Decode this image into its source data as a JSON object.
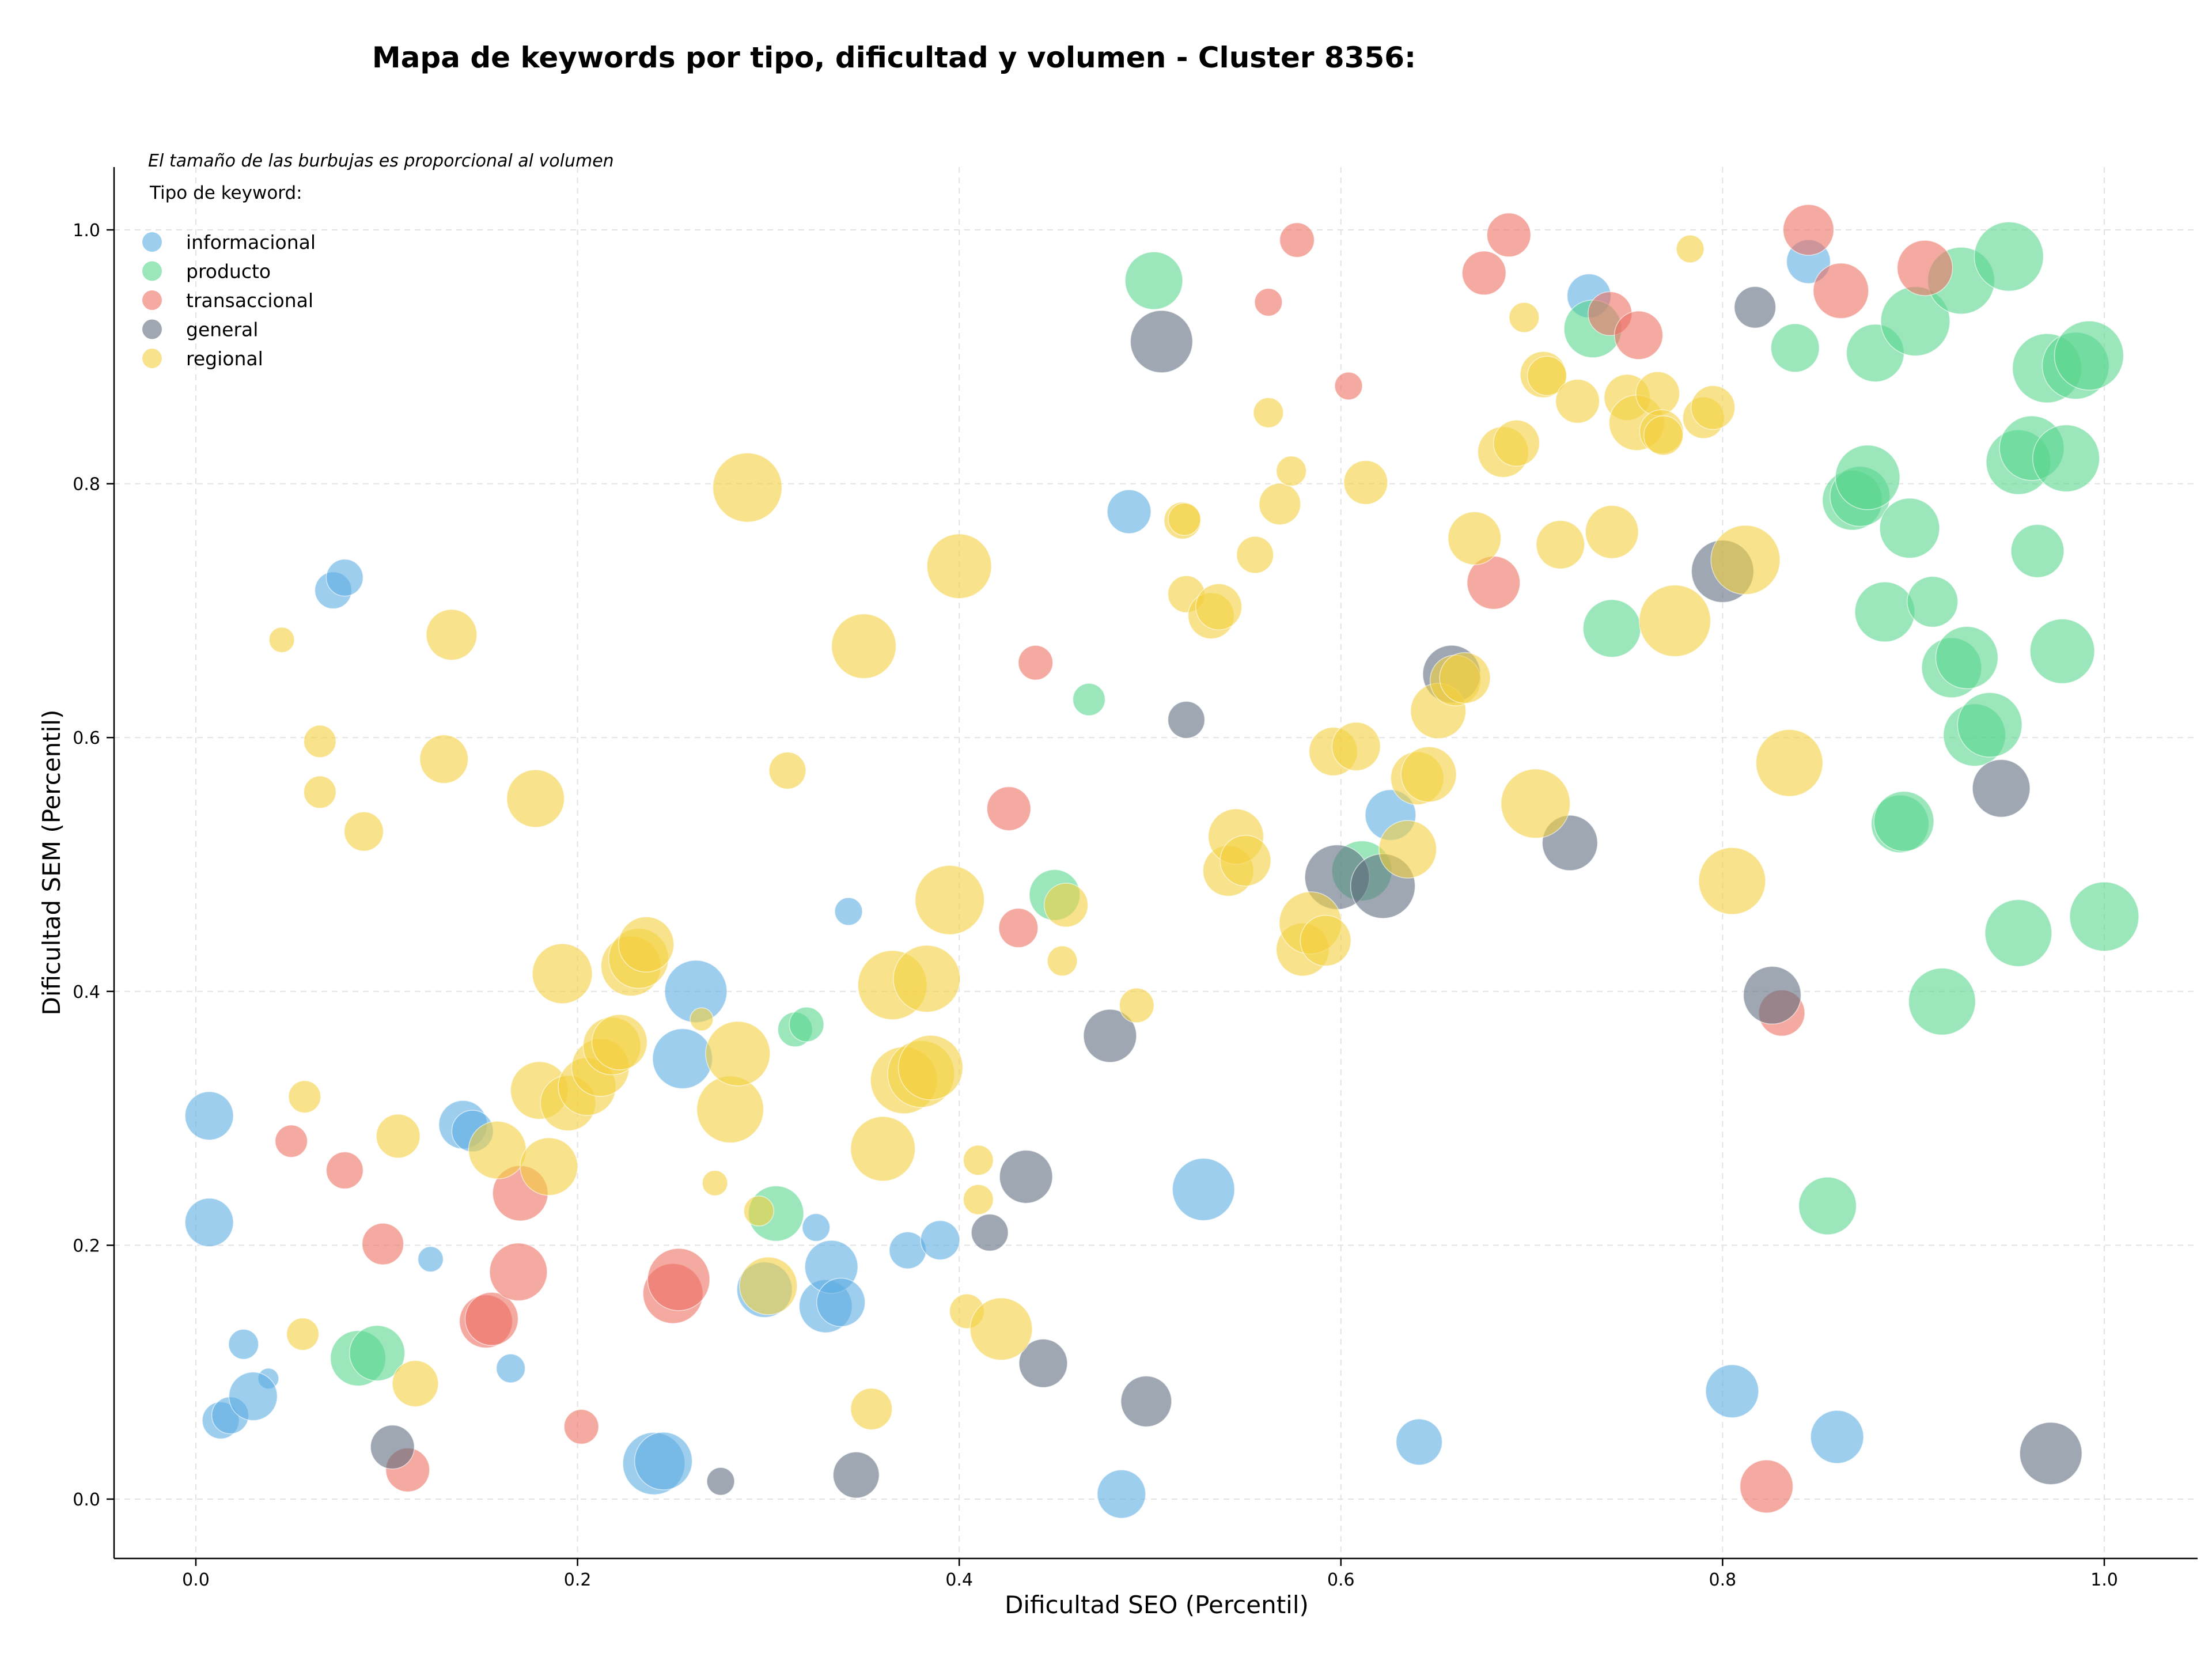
{
  "chart_data": {
    "type": "scatter",
    "title": "Mapa de keywords por tipo, dificultad y volumen - Cluster 8356:",
    "xlabel": "Dificultad SEO (Percentil)",
    "ylabel": "Dificultad SEM (Percentil)",
    "xlim": [
      -0.042,
      1.05
    ],
    "ylim": [
      -0.045,
      1.05
    ],
    "xticks": [
      "0.0",
      "0.2",
      "0.4",
      "0.6",
      "0.8",
      "1.0"
    ],
    "yticks": [
      "0.0",
      "0.2",
      "0.4",
      "0.6",
      "0.8",
      "1.0"
    ],
    "grid": true,
    "legend_position": "top-left",
    "annotation": "El tamaño de las burbujas es proporcional al volumen",
    "legend_title": "Tipo de keyword:",
    "series": [
      {
        "name": "informacional",
        "color": "#5dade2",
        "points": [
          [
            0.007,
            0.302,
            42
          ],
          [
            0.007,
            0.218,
            42
          ],
          [
            0.072,
            0.716,
            32
          ],
          [
            0.078,
            0.726,
            32
          ],
          [
            0.025,
            0.122,
            26
          ],
          [
            0.038,
            0.095,
            18
          ],
          [
            0.013,
            0.062,
            32
          ],
          [
            0.018,
            0.066,
            32
          ],
          [
            0.03,
            0.081,
            42
          ],
          [
            0.123,
            0.189,
            22
          ],
          [
            0.14,
            0.295,
            42
          ],
          [
            0.145,
            0.29,
            36
          ],
          [
            0.165,
            0.103,
            25
          ],
          [
            0.24,
            0.028,
            54
          ],
          [
            0.245,
            0.03,
            50
          ],
          [
            0.255,
            0.347,
            52
          ],
          [
            0.262,
            0.4,
            54
          ],
          [
            0.298,
            0.165,
            48
          ],
          [
            0.33,
            0.152,
            46
          ],
          [
            0.333,
            0.183,
            46
          ],
          [
            0.338,
            0.155,
            42
          ],
          [
            0.325,
            0.214,
            24
          ],
          [
            0.342,
            0.463,
            24
          ],
          [
            0.373,
            0.196,
            32
          ],
          [
            0.39,
            0.204,
            34
          ],
          [
            0.485,
            0.004,
            42
          ],
          [
            0.489,
            0.778,
            38
          ],
          [
            0.528,
            0.244,
            54
          ],
          [
            0.626,
            0.539,
            44
          ],
          [
            0.641,
            0.045,
            40
          ],
          [
            0.73,
            0.948,
            38
          ],
          [
            0.805,
            0.085,
            46
          ],
          [
            0.86,
            0.049,
            46
          ],
          [
            0.845,
            0.975,
            38
          ]
        ]
      },
      {
        "name": "producto",
        "color": "#58d68d",
        "points": [
          [
            0.085,
            0.111,
            48
          ],
          [
            0.095,
            0.115,
            48
          ],
          [
            0.304,
            0.225,
            48
          ],
          [
            0.314,
            0.37,
            30
          ],
          [
            0.32,
            0.374,
            30
          ],
          [
            0.45,
            0.476,
            44
          ],
          [
            0.468,
            0.63,
            28
          ],
          [
            0.502,
            0.96,
            50
          ],
          [
            0.611,
            0.495,
            52
          ],
          [
            0.732,
            0.922,
            50
          ],
          [
            0.742,
            0.686,
            50
          ],
          [
            0.838,
            0.907,
            42
          ],
          [
            0.855,
            0.231,
            50
          ],
          [
            0.868,
            0.787,
            52
          ],
          [
            0.872,
            0.79,
            52
          ],
          [
            0.876,
            0.805,
            56
          ],
          [
            0.88,
            0.903,
            50
          ],
          [
            0.885,
            0.699,
            52
          ],
          [
            0.893,
            0.532,
            50
          ],
          [
            0.895,
            0.534,
            52
          ],
          [
            0.898,
            0.765,
            52
          ],
          [
            0.901,
            0.928,
            60
          ],
          [
            0.91,
            0.707,
            44
          ],
          [
            0.915,
            0.392,
            58
          ],
          [
            0.92,
            0.655,
            52
          ],
          [
            0.925,
            0.96,
            58
          ],
          [
            0.928,
            0.663,
            54
          ],
          [
            0.932,
            0.602,
            54
          ],
          [
            0.94,
            0.61,
            56
          ],
          [
            0.955,
            0.446,
            58
          ],
          [
            0.95,
            0.979,
            60
          ],
          [
            0.955,
            0.817,
            56
          ],
          [
            0.962,
            0.828,
            56
          ],
          [
            0.965,
            0.747,
            46
          ],
          [
            0.97,
            0.891,
            60
          ],
          [
            0.978,
            0.668,
            56
          ],
          [
            0.98,
            0.82,
            58
          ],
          [
            0.985,
            0.893,
            58
          ],
          [
            0.992,
            0.901,
            60
          ],
          [
            1.0,
            0.459,
            60
          ]
        ]
      },
      {
        "name": "transaccional",
        "color": "#ec7063",
        "points": [
          [
            0.05,
            0.282,
            28
          ],
          [
            0.078,
            0.259,
            32
          ],
          [
            0.098,
            0.201,
            36
          ],
          [
            0.111,
            0.023,
            38
          ],
          [
            0.152,
            0.14,
            46
          ],
          [
            0.155,
            0.142,
            46
          ],
          [
            0.17,
            0.241,
            48
          ],
          [
            0.169,
            0.179,
            50
          ],
          [
            0.202,
            0.057,
            30
          ],
          [
            0.25,
            0.162,
            52
          ],
          [
            0.253,
            0.173,
            54
          ],
          [
            0.426,
            0.544,
            38
          ],
          [
            0.431,
            0.45,
            34
          ],
          [
            0.44,
            0.659,
            30
          ],
          [
            0.562,
            0.943,
            24
          ],
          [
            0.577,
            0.992,
            30
          ],
          [
            0.604,
            0.877,
            24
          ],
          [
            0.675,
            0.966,
            38
          ],
          [
            0.68,
            0.722,
            46
          ],
          [
            0.688,
            0.996,
            38
          ],
          [
            0.741,
            0.934,
            38
          ],
          [
            0.756,
            0.917,
            42
          ],
          [
            0.823,
            0.01,
            46
          ],
          [
            0.831,
            0.383,
            40
          ],
          [
            0.845,
            1.0,
            44
          ],
          [
            0.862,
            0.952,
            48
          ],
          [
            0.906,
            0.97,
            48
          ]
        ]
      },
      {
        "name": "general",
        "color": "#5d6d7e",
        "points": [
          [
            0.103,
            0.041,
            38
          ],
          [
            0.275,
            0.014,
            24
          ],
          [
            0.346,
            0.019,
            40
          ],
          [
            0.416,
            0.21,
            32
          ],
          [
            0.435,
            0.254,
            46
          ],
          [
            0.444,
            0.107,
            42
          ],
          [
            0.479,
            0.365,
            46
          ],
          [
            0.498,
            0.077,
            44
          ],
          [
            0.506,
            0.912,
            54
          ],
          [
            0.519,
            0.614,
            32
          ],
          [
            0.598,
            0.49,
            56
          ],
          [
            0.622,
            0.483,
            56
          ],
          [
            0.658,
            0.65,
            50
          ],
          [
            0.72,
            0.517,
            48
          ],
          [
            0.8,
            0.731,
            54
          ],
          [
            0.817,
            0.939,
            36
          ],
          [
            0.826,
            0.397,
            50
          ],
          [
            0.946,
            0.56,
            50
          ],
          [
            0.972,
            0.036,
            54
          ]
        ]
      },
      {
        "name": "regional",
        "color": "#f4d03f",
        "points": [
          [
            0.045,
            0.677,
            22
          ],
          [
            0.057,
            0.317,
            28
          ],
          [
            0.056,
            0.13,
            28
          ],
          [
            0.065,
            0.597,
            28
          ],
          [
            0.065,
            0.557,
            28
          ],
          [
            0.088,
            0.526,
            34
          ],
          [
            0.106,
            0.286,
            38
          ],
          [
            0.115,
            0.091,
            40
          ],
          [
            0.13,
            0.583,
            42
          ],
          [
            0.134,
            0.681,
            44
          ],
          [
            0.158,
            0.275,
            50
          ],
          [
            0.178,
            0.552,
            50
          ],
          [
            0.18,
            0.322,
            50
          ],
          [
            0.185,
            0.262,
            50
          ],
          [
            0.192,
            0.414,
            52
          ],
          [
            0.195,
            0.312,
            48
          ],
          [
            0.205,
            0.325,
            50
          ],
          [
            0.212,
            0.34,
            50
          ],
          [
            0.218,
            0.357,
            50
          ],
          [
            0.222,
            0.36,
            48
          ],
          [
            0.228,
            0.42,
            52
          ],
          [
            0.232,
            0.426,
            52
          ],
          [
            0.236,
            0.437,
            48
          ],
          [
            0.265,
            0.378,
            20
          ],
          [
            0.272,
            0.249,
            22
          ],
          [
            0.28,
            0.307,
            58
          ],
          [
            0.284,
            0.351,
            56
          ],
          [
            0.289,
            0.797,
            60
          ],
          [
            0.295,
            0.227,
            26
          ],
          [
            0.3,
            0.168,
            50
          ],
          [
            0.31,
            0.574,
            32
          ],
          [
            0.35,
            0.672,
            56
          ],
          [
            0.354,
            0.071,
            36
          ],
          [
            0.36,
            0.276,
            56
          ],
          [
            0.365,
            0.405,
            60
          ],
          [
            0.371,
            0.33,
            58
          ],
          [
            0.38,
            0.335,
            58
          ],
          [
            0.383,
            0.41,
            58
          ],
          [
            0.385,
            0.34,
            56
          ],
          [
            0.395,
            0.472,
            60
          ],
          [
            0.4,
            0.735,
            56
          ],
          [
            0.404,
            0.148,
            30
          ],
          [
            0.41,
            0.267,
            26
          ],
          [
            0.41,
            0.236,
            26
          ],
          [
            0.422,
            0.134,
            54
          ],
          [
            0.454,
            0.424,
            26
          ],
          [
            0.456,
            0.468,
            38
          ],
          [
            0.493,
            0.389,
            30
          ],
          [
            0.517,
            0.771,
            32
          ],
          [
            0.518,
            0.772,
            28
          ],
          [
            0.519,
            0.713,
            32
          ],
          [
            0.532,
            0.696,
            40
          ],
          [
            0.536,
            0.703,
            40
          ],
          [
            0.541,
            0.495,
            44
          ],
          [
            0.545,
            0.522,
            48
          ],
          [
            0.55,
            0.503,
            44
          ],
          [
            0.555,
            0.744,
            32
          ],
          [
            0.562,
            0.856,
            26
          ],
          [
            0.568,
            0.784,
            36
          ],
          [
            0.574,
            0.81,
            26
          ],
          [
            0.58,
            0.433,
            46
          ],
          [
            0.584,
            0.454,
            54
          ],
          [
            0.592,
            0.44,
            44
          ],
          [
            0.596,
            0.589,
            42
          ],
          [
            0.608,
            0.593,
            42
          ],
          [
            0.613,
            0.801,
            38
          ],
          [
            0.635,
            0.512,
            50
          ],
          [
            0.64,
            0.568,
            46
          ],
          [
            0.646,
            0.571,
            48
          ],
          [
            0.651,
            0.621,
            48
          ],
          [
            0.66,
            0.645,
            44
          ],
          [
            0.665,
            0.647,
            44
          ],
          [
            0.67,
            0.757,
            46
          ],
          [
            0.685,
            0.825,
            44
          ],
          [
            0.692,
            0.832,
            40
          ],
          [
            0.696,
            0.931,
            26
          ],
          [
            0.702,
            0.548,
            60
          ],
          [
            0.706,
            0.886,
            40
          ],
          [
            0.708,
            0.885,
            34
          ],
          [
            0.715,
            0.752,
            42
          ],
          [
            0.724,
            0.865,
            38
          ],
          [
            0.742,
            0.762,
            46
          ],
          [
            0.75,
            0.868,
            40
          ],
          [
            0.755,
            0.848,
            48
          ],
          [
            0.766,
            0.871,
            38
          ],
          [
            0.768,
            0.841,
            38
          ],
          [
            0.769,
            0.838,
            34
          ],
          [
            0.775,
            0.692,
            62
          ],
          [
            0.783,
            0.985,
            24
          ],
          [
            0.79,
            0.852,
            36
          ],
          [
            0.795,
            0.86,
            38
          ],
          [
            0.805,
            0.487,
            58
          ],
          [
            0.812,
            0.74,
            60
          ],
          [
            0.835,
            0.58,
            58
          ]
        ]
      }
    ]
  }
}
